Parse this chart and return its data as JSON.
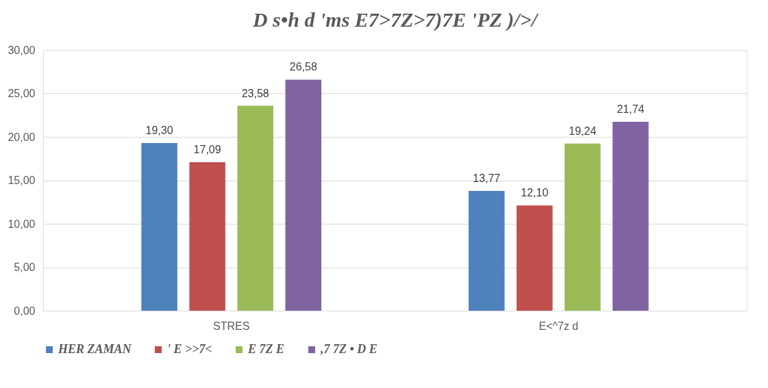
{
  "chart_data": {
    "type": "bar",
    "title": "D s•h d 'ms E7>7Z>7)7E 'PZ )/>/",
    "categories": [
      "STRES",
      "E<^7z d"
    ],
    "series": [
      {
        "name": "HER ZAMAN",
        "color": "#4f81bd",
        "values": [
          19.3,
          13.77
        ],
        "value_labels": [
          "19,30",
          "13,77"
        ]
      },
      {
        "name": "' E >>7<",
        "color": "#c0504d",
        "values": [
          17.09,
          12.1
        ],
        "value_labels": [
          "17,09",
          "12,10"
        ]
      },
      {
        "name": "E 7Z E",
        "color": "#9bbb59",
        "values": [
          23.58,
          19.24
        ],
        "value_labels": [
          "23,58",
          "19,24"
        ]
      },
      {
        "name": ",7 7Z • D E",
        "color": "#8064a2",
        "values": [
          26.58,
          21.74
        ],
        "value_labels": [
          "26,58",
          "21,74"
        ]
      }
    ],
    "ylim": [
      0,
      30
    ],
    "yticks": [
      {
        "value": 0,
        "label": "0,00"
      },
      {
        "value": 5,
        "label": "5,00"
      },
      {
        "value": 10,
        "label": "10,00"
      },
      {
        "value": 15,
        "label": "15,00"
      },
      {
        "value": 20,
        "label": "20,00"
      },
      {
        "value": 25,
        "label": "25,00"
      },
      {
        "value": 30,
        "label": "30,00"
      }
    ],
    "grid": "y",
    "legend": "bottom"
  }
}
